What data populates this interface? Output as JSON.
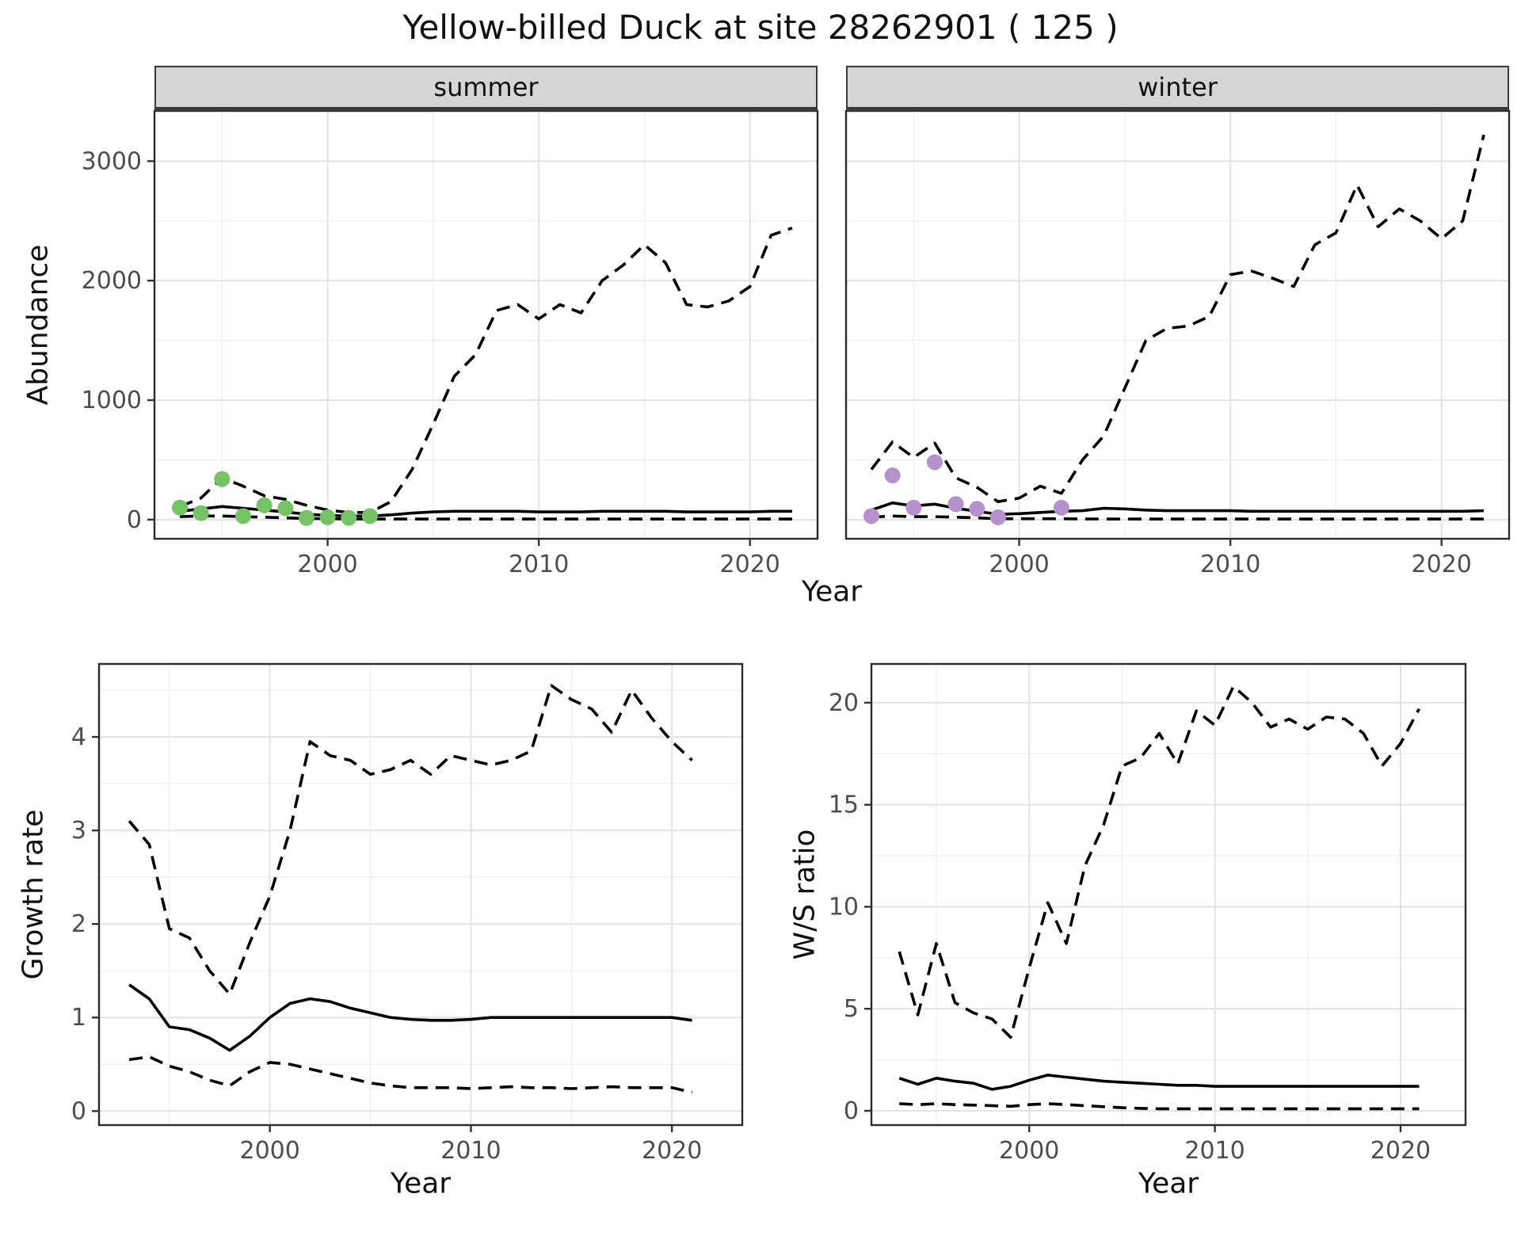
{
  "title": "Yellow-billed Duck at site 28262901 ( 125 )",
  "colors": {
    "line": "#000000",
    "summer_points": "#74c365",
    "winter_points": "#b592cb",
    "strip_bg": "#d5d5d5",
    "grid_major": "#e3e3e3",
    "grid_minor": "#f0f0f0",
    "panel_border": "#2b2b2b",
    "tick_text": "#4d4d4d"
  },
  "chart_data": [
    {
      "id": "summer",
      "type": "line",
      "facet_label": "summer",
      "xlabel": "Year",
      "ylabel": "Abundance",
      "xlim": [
        1991.8,
        2023.2
      ],
      "ylim": [
        -160,
        3420
      ],
      "xticks": [
        2000,
        2010,
        2020
      ],
      "yticks": [
        0,
        1000,
        2000,
        3000
      ],
      "xminor": [
        1995,
        2005,
        2015
      ],
      "yminor": [
        500,
        1500,
        2500
      ],
      "show_y_axis": true,
      "series": [
        {
          "name": "upper_ci",
          "style": "dashed",
          "x": [
            1993,
            1994,
            1995,
            1996,
            1997,
            1998,
            1999,
            2000,
            2001,
            2002,
            2003,
            2004,
            2005,
            2006,
            2007,
            2008,
            2009,
            2010,
            2011,
            2012,
            2013,
            2014,
            2015,
            2016,
            2017,
            2018,
            2019,
            2020,
            2021,
            2022
          ],
          "y": [
            110,
            180,
            350,
            280,
            200,
            170,
            120,
            80,
            60,
            60,
            150,
            420,
            800,
            1200,
            1380,
            1750,
            1800,
            1680,
            1800,
            1730,
            2000,
            2130,
            2300,
            2150,
            1800,
            1780,
            1830,
            1950,
            2380,
            2440
          ]
        },
        {
          "name": "median",
          "style": "solid",
          "x": [
            1993,
            1994,
            1995,
            1996,
            1997,
            1998,
            1999,
            2000,
            2001,
            2002,
            2003,
            2004,
            2005,
            2006,
            2007,
            2008,
            2009,
            2010,
            2011,
            2012,
            2013,
            2014,
            2015,
            2016,
            2017,
            2018,
            2019,
            2020,
            2021,
            2022
          ],
          "y": [
            70,
            90,
            110,
            95,
            80,
            65,
            45,
            35,
            30,
            30,
            40,
            55,
            65,
            70,
            70,
            70,
            70,
            65,
            65,
            65,
            70,
            70,
            70,
            70,
            65,
            65,
            65,
            65,
            70,
            70
          ]
        },
        {
          "name": "lower_ci",
          "style": "dashed",
          "x": [
            1993,
            1994,
            1995,
            1996,
            1997,
            1998,
            1999,
            2000,
            2001,
            2002,
            2003,
            2004,
            2005,
            2006,
            2007,
            2008,
            2009,
            2010,
            2011,
            2012,
            2013,
            2014,
            2015,
            2016,
            2017,
            2018,
            2019,
            2020,
            2021,
            2022
          ],
          "y": [
            25,
            30,
            30,
            25,
            20,
            15,
            10,
            8,
            6,
            5,
            5,
            5,
            5,
            5,
            5,
            5,
            5,
            5,
            5,
            5,
            5,
            5,
            5,
            5,
            5,
            5,
            5,
            5,
            5,
            5
          ]
        },
        {
          "name": "observed_counts",
          "style": "points",
          "color": "#74c365",
          "x": [
            1993,
            1994,
            1995,
            1996,
            1997,
            1998,
            1999,
            2000,
            2001,
            2002
          ],
          "y": [
            100,
            55,
            340,
            30,
            120,
            95,
            15,
            20,
            15,
            30
          ]
        }
      ]
    },
    {
      "id": "winter",
      "type": "line",
      "facet_label": "winter",
      "xlabel": "Year",
      "ylabel": "Abundance",
      "xlim": [
        1991.8,
        2023.2
      ],
      "ylim": [
        -160,
        3420
      ],
      "xticks": [
        2000,
        2010,
        2020
      ],
      "yticks": [
        0,
        1000,
        2000,
        3000
      ],
      "xminor": [
        1995,
        2005,
        2015
      ],
      "yminor": [
        500,
        1500,
        2500
      ],
      "show_y_axis": false,
      "series": [
        {
          "name": "upper_ci",
          "style": "dashed",
          "x": [
            1993,
            1994,
            1995,
            1996,
            1997,
            1998,
            1999,
            2000,
            2001,
            2002,
            2003,
            2004,
            2005,
            2006,
            2007,
            2008,
            2009,
            2010,
            2011,
            2012,
            2013,
            2014,
            2015,
            2016,
            2017,
            2018,
            2019,
            2020,
            2021,
            2022
          ],
          "y": [
            420,
            650,
            520,
            640,
            350,
            270,
            150,
            180,
            280,
            220,
            500,
            700,
            1100,
            1500,
            1600,
            1620,
            1700,
            2050,
            2080,
            2020,
            1950,
            2300,
            2400,
            2800,
            2450,
            2600,
            2500,
            2350,
            2500,
            3220
          ]
        },
        {
          "name": "median",
          "style": "solid",
          "x": [
            1993,
            1994,
            1995,
            1996,
            1997,
            1998,
            1999,
            2000,
            2001,
            2002,
            2003,
            2004,
            2005,
            2006,
            2007,
            2008,
            2009,
            2010,
            2011,
            2012,
            2013,
            2014,
            2015,
            2016,
            2017,
            2018,
            2019,
            2020,
            2021,
            2022
          ],
          "y": [
            80,
            140,
            115,
            130,
            95,
            70,
            45,
            50,
            60,
            70,
            75,
            95,
            90,
            80,
            75,
            75,
            75,
            75,
            70,
            70,
            70,
            70,
            70,
            70,
            70,
            70,
            70,
            70,
            70,
            75
          ]
        },
        {
          "name": "lower_ci",
          "style": "dashed",
          "x": [
            1993,
            1994,
            1995,
            1996,
            1997,
            1998,
            1999,
            2000,
            2001,
            2002,
            2003,
            2004,
            2005,
            2006,
            2007,
            2008,
            2009,
            2010,
            2011,
            2012,
            2013,
            2014,
            2015,
            2016,
            2017,
            2018,
            2019,
            2020,
            2021,
            2022
          ],
          "y": [
            20,
            30,
            25,
            25,
            20,
            15,
            8,
            8,
            8,
            8,
            6,
            6,
            5,
            5,
            5,
            5,
            5,
            5,
            5,
            5,
            5,
            5,
            5,
            5,
            5,
            5,
            5,
            5,
            5,
            5
          ]
        },
        {
          "name": "observed_counts",
          "style": "points",
          "color": "#b592cb",
          "x": [
            1993,
            1994,
            1995,
            1996,
            1997,
            1998,
            1999,
            2002
          ],
          "y": [
            30,
            370,
            100,
            480,
            130,
            90,
            20,
            100
          ]
        }
      ]
    },
    {
      "id": "growth",
      "type": "line",
      "facet_label": "",
      "xlabel": "Year",
      "ylabel": "Growth rate",
      "xlim": [
        1991.5,
        2023.5
      ],
      "ylim": [
        -0.15,
        4.78
      ],
      "xticks": [
        2000,
        2010,
        2020
      ],
      "yticks": [
        0,
        1,
        2,
        3,
        4
      ],
      "xminor": [
        1995,
        2005,
        2015
      ],
      "yminor": [
        0.5,
        1.5,
        2.5,
        3.5,
        4.5
      ],
      "show_y_axis": true,
      "series": [
        {
          "name": "upper_ci",
          "style": "dashed",
          "x": [
            1993,
            1994,
            1995,
            1996,
            1997,
            1998,
            1999,
            2000,
            2001,
            2002,
            2003,
            2004,
            2005,
            2006,
            2007,
            2008,
            2009,
            2010,
            2011,
            2012,
            2013,
            2014,
            2015,
            2016,
            2017,
            2018,
            2019,
            2020,
            2021
          ],
          "y": [
            3.1,
            2.85,
            1.95,
            1.85,
            1.5,
            1.25,
            1.8,
            2.3,
            3.0,
            3.95,
            3.8,
            3.75,
            3.6,
            3.65,
            3.75,
            3.6,
            3.8,
            3.75,
            3.7,
            3.75,
            3.85,
            4.55,
            4.4,
            4.3,
            4.05,
            4.5,
            4.2,
            3.95,
            3.75
          ]
        },
        {
          "name": "median",
          "style": "solid",
          "x": [
            1993,
            1994,
            1995,
            1996,
            1997,
            1998,
            1999,
            2000,
            2001,
            2002,
            2003,
            2004,
            2005,
            2006,
            2007,
            2008,
            2009,
            2010,
            2011,
            2012,
            2013,
            2014,
            2015,
            2016,
            2017,
            2018,
            2019,
            2020,
            2021
          ],
          "y": [
            1.35,
            1.2,
            0.9,
            0.87,
            0.78,
            0.65,
            0.8,
            1.0,
            1.15,
            1.2,
            1.17,
            1.1,
            1.05,
            1.0,
            0.98,
            0.97,
            0.97,
            0.98,
            1.0,
            1.0,
            1.0,
            1.0,
            1.0,
            1.0,
            1.0,
            1.0,
            1.0,
            1.0,
            0.97
          ]
        },
        {
          "name": "lower_ci",
          "style": "dashed",
          "x": [
            1993,
            1994,
            1995,
            1996,
            1997,
            1998,
            1999,
            2000,
            2001,
            2002,
            2003,
            2004,
            2005,
            2006,
            2007,
            2008,
            2009,
            2010,
            2011,
            2012,
            2013,
            2014,
            2015,
            2016,
            2017,
            2018,
            2019,
            2020,
            2021
          ],
          "y": [
            0.55,
            0.58,
            0.48,
            0.42,
            0.33,
            0.27,
            0.42,
            0.52,
            0.5,
            0.45,
            0.4,
            0.35,
            0.3,
            0.27,
            0.25,
            0.25,
            0.25,
            0.24,
            0.25,
            0.26,
            0.25,
            0.25,
            0.24,
            0.25,
            0.26,
            0.25,
            0.25,
            0.25,
            0.2
          ]
        }
      ]
    },
    {
      "id": "ws",
      "type": "line",
      "facet_label": "",
      "xlabel": "Year",
      "ylabel": "W/S ratio",
      "xlim": [
        1991.5,
        2023.5
      ],
      "ylim": [
        -0.7,
        21.9
      ],
      "xticks": [
        2000,
        2010,
        2020
      ],
      "yticks": [
        0,
        5,
        10,
        15,
        20
      ],
      "xminor": [
        1995,
        2005,
        2015
      ],
      "yminor": [
        2.5,
        7.5,
        12.5,
        17.5
      ],
      "show_y_axis": true,
      "series": [
        {
          "name": "upper_ci",
          "style": "dashed",
          "x": [
            1993,
            1994,
            1995,
            1996,
            1997,
            1998,
            1999,
            2000,
            2001,
            2002,
            2003,
            2004,
            2005,
            2006,
            2007,
            2008,
            2009,
            2010,
            2011,
            2012,
            2013,
            2014,
            2015,
            2016,
            2017,
            2018,
            2019,
            2020,
            2021
          ],
          "y": [
            7.8,
            4.7,
            8.2,
            5.3,
            4.8,
            4.5,
            3.6,
            7.0,
            10.2,
            8.2,
            12.0,
            14.0,
            16.9,
            17.3,
            18.5,
            17.0,
            19.6,
            18.9,
            20.8,
            20.0,
            18.8,
            19.2,
            18.7,
            19.3,
            19.2,
            18.5,
            16.9,
            18.0,
            19.7
          ]
        },
        {
          "name": "median",
          "style": "solid",
          "x": [
            1993,
            1994,
            1995,
            1996,
            1997,
            1998,
            1999,
            2000,
            2001,
            2002,
            2003,
            2004,
            2005,
            2006,
            2007,
            2008,
            2009,
            2010,
            2011,
            2012,
            2013,
            2014,
            2015,
            2016,
            2017,
            2018,
            2019,
            2020,
            2021
          ],
          "y": [
            1.6,
            1.3,
            1.6,
            1.45,
            1.35,
            1.05,
            1.2,
            1.5,
            1.75,
            1.65,
            1.55,
            1.45,
            1.4,
            1.35,
            1.3,
            1.25,
            1.25,
            1.2,
            1.2,
            1.2,
            1.2,
            1.2,
            1.2,
            1.2,
            1.2,
            1.2,
            1.2,
            1.2,
            1.2
          ]
        },
        {
          "name": "lower_ci",
          "style": "dashed",
          "x": [
            1993,
            1994,
            1995,
            1996,
            1997,
            1998,
            1999,
            2000,
            2001,
            2002,
            2003,
            2004,
            2005,
            2006,
            2007,
            2008,
            2009,
            2010,
            2011,
            2012,
            2013,
            2014,
            2015,
            2016,
            2017,
            2018,
            2019,
            2020,
            2021
          ],
          "y": [
            0.35,
            0.3,
            0.35,
            0.3,
            0.28,
            0.25,
            0.22,
            0.3,
            0.35,
            0.3,
            0.25,
            0.2,
            0.15,
            0.12,
            0.1,
            0.1,
            0.1,
            0.1,
            0.1,
            0.1,
            0.1,
            0.1,
            0.1,
            0.1,
            0.1,
            0.1,
            0.1,
            0.1,
            0.1
          ]
        }
      ]
    }
  ]
}
